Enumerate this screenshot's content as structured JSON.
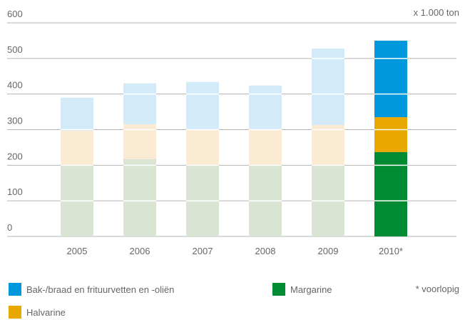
{
  "chart_data": {
    "type": "stacked_bar",
    "unit_label": "x 1.000 ton",
    "footnote": "* voorlopig",
    "categories": [
      "2005",
      "2006",
      "2007",
      "2008",
      "2009",
      "2010*"
    ],
    "series": [
      {
        "name": "Margarine",
        "color": "#008a32",
        "point_colors": [
          "#dae4d2",
          "#dae4d2",
          "#dae4d2",
          "#dae4d2",
          "#dae4d2",
          "#008a32"
        ],
        "values": [
          200,
          217,
          200,
          200,
          200,
          237
        ]
      },
      {
        "name": "Halvarine",
        "color": "#e9a800",
        "point_colors": [
          "#fbebd3",
          "#fbebd3",
          "#fbebd3",
          "#fbebd3",
          "#fbebd3",
          "#e9a800"
        ],
        "values": [
          97,
          98,
          100,
          100,
          113,
          98
        ]
      },
      {
        "name": "Bak-/braad en frituurvetten en -oliën",
        "color": "#0098dc",
        "point_colors": [
          "#d3eaf8",
          "#d3eaf8",
          "#d3eaf8",
          "#d3eaf8",
          "#d3eaf8",
          "#0098dc"
        ],
        "values": [
          93,
          115,
          134,
          124,
          215,
          215
        ]
      }
    ],
    "ylim": [
      0,
      600
    ],
    "yticks": [
      0,
      100,
      200,
      300,
      400,
      500,
      600
    ],
    "grid": true
  }
}
